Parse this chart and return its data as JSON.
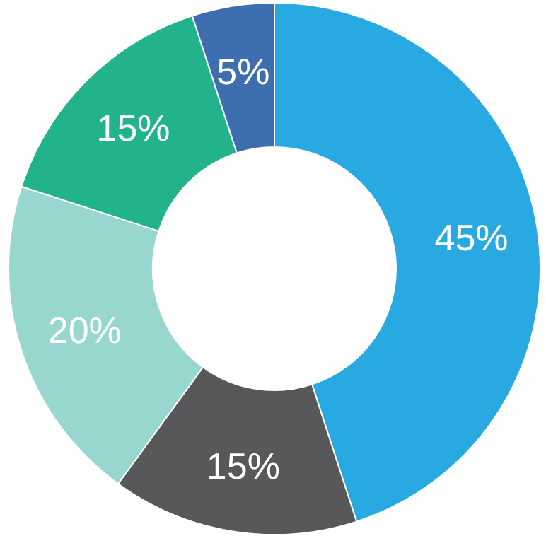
{
  "chart_data": {
    "type": "donut",
    "categories": [
      null,
      null,
      null,
      null,
      null
    ],
    "values": [
      45,
      15,
      20,
      15,
      5
    ],
    "colors": [
      "#29a9e1",
      "#58585a",
      "#97d7d0",
      "#22b38d",
      "#3d6eb0"
    ],
    "value_labels": [
      "45%",
      "15%",
      "20%",
      "15%",
      "5%"
    ]
  }
}
